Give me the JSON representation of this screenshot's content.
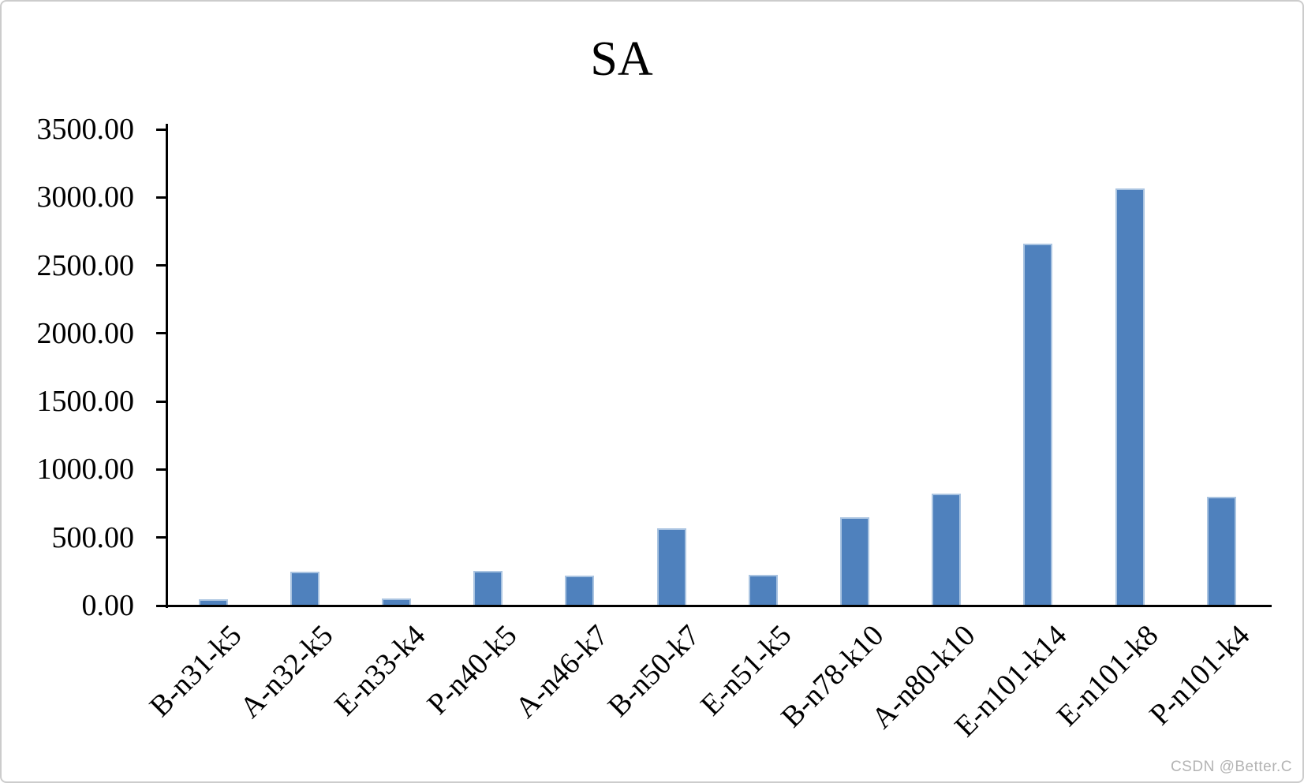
{
  "watermark": {
    "text": "CSDN @Better.C",
    "color": "#b3b3b3"
  },
  "chart_data": {
    "type": "bar",
    "title": "SA",
    "categories": [
      "B-n31-k5",
      "A-n32-k5",
      "E-n33-k4",
      "P-n40-k5",
      "A-n46-k7",
      "B-n50-k7",
      "E-n51-k5",
      "B-n78-k10",
      "A-n80-k10",
      "E-n101-k14",
      "E-n101-k8",
      "P-n101-k4"
    ],
    "values": [
      48,
      247,
      50,
      257,
      222,
      570,
      228,
      647,
      821,
      2661,
      3064,
      798
    ],
    "ylim": [
      0,
      3500
    ],
    "ytick_step": 500,
    "ytick_labels": [
      "0.00",
      "500.00",
      "1000.00",
      "1500.00",
      "2000.00",
      "2500.00",
      "3000.00",
      "3500.00"
    ],
    "grid": false,
    "legend_position": "none",
    "xlabel": "",
    "ylabel": "",
    "x_tick_rotation_deg": 45,
    "bar_color": "#4f81bd",
    "bar_border_color": "#aac4e1",
    "axis_color": "#000000"
  }
}
